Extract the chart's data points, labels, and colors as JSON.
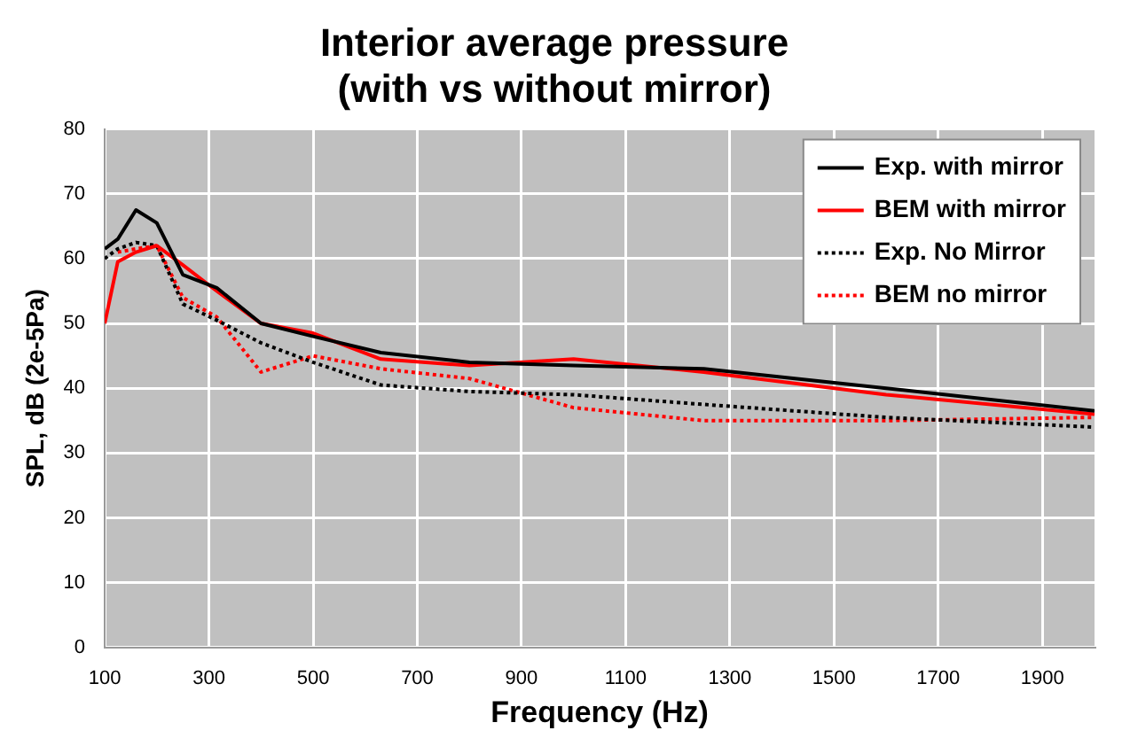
{
  "chart_data": {
    "type": "line",
    "title": "Interior average pressure\n(with vs without mirror)",
    "xlabel": "Frequency (Hz)",
    "ylabel": "SPL, dB (2e-5Pa)",
    "x": [
      100,
      125,
      160,
      200,
      250,
      315,
      400,
      500,
      630,
      800,
      1000,
      1250,
      1600,
      2000
    ],
    "series": [
      {
        "name": "Exp. with mirror",
        "color": "#000000",
        "line_style": "solid",
        "values": [
          61.5,
          63,
          67.5,
          65.5,
          57.5,
          55.5,
          50,
          48,
          45.5,
          44,
          43.5,
          43,
          40,
          36.5
        ]
      },
      {
        "name": "BEM with mirror",
        "color": "#ff0000",
        "line_style": "solid",
        "values": [
          50,
          59.5,
          61,
          62,
          59,
          55,
          50,
          48.5,
          44.5,
          43.5,
          44.5,
          42.5,
          39,
          36
        ]
      },
      {
        "name": "Exp. No Mirror",
        "color": "#000000",
        "line_style": "dotted",
        "values": [
          60,
          61.5,
          62.5,
          62,
          53,
          50.5,
          47,
          44,
          40.5,
          39.5,
          39,
          37.5,
          35.5,
          34
        ]
      },
      {
        "name": "BEM no mirror",
        "color": "#ff0000",
        "line_style": "dotted",
        "values": [
          null,
          61,
          61.5,
          62,
          54,
          51,
          42.5,
          45,
          43,
          41.5,
          37,
          35,
          35,
          35.5
        ]
      }
    ],
    "xlim": [
      100,
      2000
    ],
    "xticks": [
      100,
      300,
      500,
      700,
      900,
      1100,
      1300,
      1500,
      1700,
      1900
    ],
    "ylim": [
      0,
      80
    ],
    "yticks": [
      0,
      10,
      20,
      30,
      40,
      50,
      60,
      70,
      80
    ],
    "grid": true,
    "legend": "top right",
    "marker": "none"
  }
}
